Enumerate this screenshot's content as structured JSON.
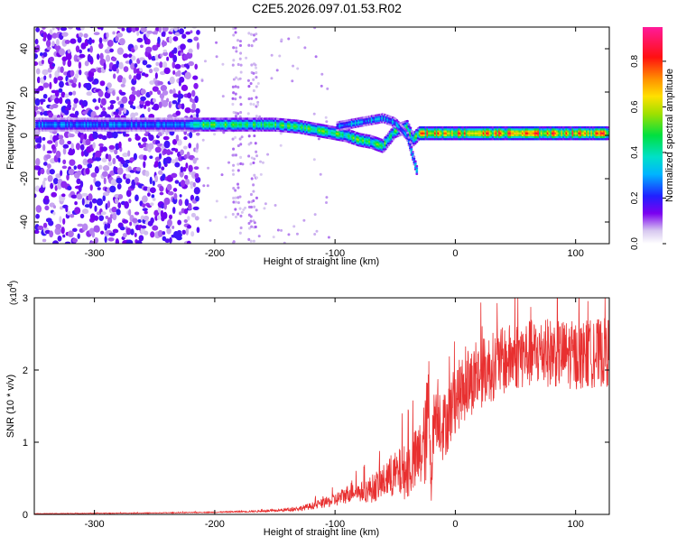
{
  "title": "C2E5.2026.097.01.53.R02",
  "chart_data": [
    {
      "type": "heatmap",
      "xlabel": "Height of straight line (km)",
      "ylabel": "Frequency (Hz)",
      "xlim": [
        -350,
        128
      ],
      "ylim": [
        -50,
        50
      ],
      "xticks": [
        "-300",
        "-200",
        "-100",
        "0",
        "100"
      ],
      "xtick_values": [
        -300,
        -200,
        -100,
        0,
        100
      ],
      "yticks": [
        "-40",
        "-20",
        "0",
        "20",
        "40"
      ],
      "ytick_values": [
        -40,
        -20,
        0,
        20,
        40
      ],
      "grid": false,
      "colorbar": {
        "label": "Normalized spectral amplitude",
        "range": [
          0,
          0.95
        ],
        "ticks": [
          "0.0",
          "0.2",
          "0.4",
          "0.6",
          "0.8"
        ],
        "tick_values": [
          0,
          0.2,
          0.4,
          0.6,
          0.8
        ]
      },
      "ridge": {
        "x": [
          -350,
          -300,
          -250,
          -220,
          -200,
          -180,
          -150,
          -130,
          -110,
          -90,
          -80,
          -70,
          -60,
          -50,
          -40,
          -35,
          -30,
          -20,
          0,
          50,
          100,
          128
        ],
        "y": [
          5,
          5,
          5,
          5,
          5,
          5,
          5,
          4,
          2,
          0,
          -2,
          -3,
          -5,
          2,
          4,
          -2,
          1,
          1,
          1,
          1,
          1,
          1
        ]
      },
      "secondary_branch": {
        "x": [
          -100,
          -80,
          -60,
          -50,
          -40,
          -35,
          -30
        ],
        "y": [
          4,
          6,
          8,
          6,
          0,
          -10,
          -20
        ]
      }
    },
    {
      "type": "line",
      "xlabel": "Height of straight line (km)",
      "ylabel": "SNR (10 * v/v)",
      "multiplier": "(x10",
      "multiplier_exp": "4",
      "multiplier_close": ")",
      "xlim": [
        -350,
        128
      ],
      "ylim": [
        0,
        3
      ],
      "xticks": [
        "-300",
        "-200",
        "-100",
        "0",
        "100"
      ],
      "xtick_values": [
        -300,
        -200,
        -100,
        0,
        100
      ],
      "yticks": [
        "0",
        "1",
        "2",
        "3"
      ],
      "ytick_values": [
        0,
        1,
        2,
        3
      ],
      "grid": false,
      "color": "#e83030",
      "series": [
        {
          "x": [
            -350,
            -250,
            -200,
            -150,
            -130,
            -110,
            -100,
            -90,
            -85,
            -80,
            -70,
            -60,
            -50,
            -40,
            -30,
            -25,
            -22,
            -20,
            -18,
            -15,
            -10,
            0,
            10,
            25,
            50,
            75,
            100,
            128
          ],
          "y": [
            0.01,
            0.02,
            0.03,
            0.05,
            0.08,
            0.15,
            0.2,
            0.28,
            0.35,
            0.3,
            0.35,
            0.45,
            0.55,
            0.6,
            0.8,
            1.0,
            1.5,
            0.5,
            1.3,
            1.5,
            1.2,
            1.6,
            1.8,
            2.0,
            2.2,
            2.25,
            2.2,
            2.25
          ],
          "noise": [
            0.002,
            0.003,
            0.004,
            0.01,
            0.02,
            0.04,
            0.06,
            0.08,
            0.1,
            0.08,
            0.12,
            0.15,
            0.2,
            0.25,
            0.3,
            0.4,
            0.5,
            0.2,
            0.3,
            0.35,
            0.3,
            0.3,
            0.3,
            0.3,
            0.3,
            0.3,
            0.3,
            0.3
          ]
        }
      ]
    }
  ]
}
